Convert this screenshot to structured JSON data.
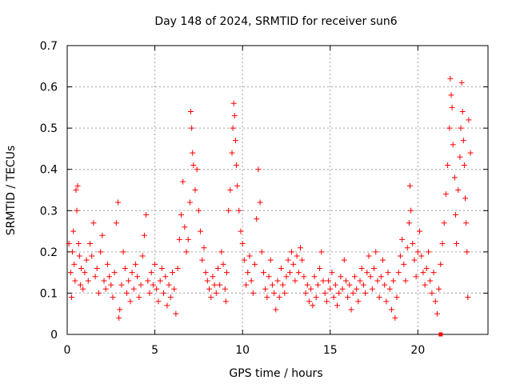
{
  "chart_data": {
    "type": "scatter",
    "title": "Day 148 of 2024, SRMTID for receiver sun6",
    "xlabel": "GPS time / hours",
    "ylabel": "SRMTID / TECUs",
    "xlim": [
      0,
      24
    ],
    "ylim": [
      0,
      0.7
    ],
    "xticks": [
      0,
      5,
      10,
      15,
      20
    ],
    "xtick_labels": [
      "0",
      "5",
      "10",
      "15",
      "20"
    ],
    "yticks": [
      0,
      0.1,
      0.2,
      0.3,
      0.4,
      0.5,
      0.6,
      0.7
    ],
    "ytick_labels": [
      "0",
      "0.1",
      "0.2",
      "0.3",
      "0.4",
      "0.5",
      "0.6",
      "0.7"
    ],
    "grid": true,
    "marker": "plus",
    "color": "#ff0000",
    "series": [
      {
        "name": "SRMTID",
        "points": [
          [
            0.1,
            0.22
          ],
          [
            0.2,
            0.15
          ],
          [
            0.25,
            0.09
          ],
          [
            0.3,
            0.2
          ],
          [
            0.35,
            0.25
          ],
          [
            0.4,
            0.17
          ],
          [
            0.45,
            0.13
          ],
          [
            0.5,
            0.35
          ],
          [
            0.55,
            0.3
          ],
          [
            0.6,
            0.36
          ],
          [
            0.65,
            0.22
          ],
          [
            0.7,
            0.19
          ],
          [
            0.75,
            0.12
          ],
          [
            0.8,
            0.16
          ],
          [
            0.9,
            0.11
          ],
          [
            1.0,
            0.15
          ],
          [
            1.1,
            0.18
          ],
          [
            1.2,
            0.13
          ],
          [
            1.3,
            0.22
          ],
          [
            1.4,
            0.19
          ],
          [
            1.5,
            0.27
          ],
          [
            1.6,
            0.14
          ],
          [
            1.7,
            0.16
          ],
          [
            1.8,
            0.1
          ],
          [
            1.9,
            0.2
          ],
          [
            2.0,
            0.24
          ],
          [
            2.1,
            0.13
          ],
          [
            2.2,
            0.11
          ],
          [
            2.3,
            0.17
          ],
          [
            2.4,
            0.14
          ],
          [
            2.5,
            0.12
          ],
          [
            2.6,
            0.09
          ],
          [
            2.7,
            0.15
          ],
          [
            2.8,
            0.27
          ],
          [
            2.9,
            0.32
          ],
          [
            2.95,
            0.04
          ],
          [
            3.0,
            0.06
          ],
          [
            3.1,
            0.12
          ],
          [
            3.2,
            0.2
          ],
          [
            3.3,
            0.16
          ],
          [
            3.4,
            0.1
          ],
          [
            3.5,
            0.13
          ],
          [
            3.6,
            0.08
          ],
          [
            3.7,
            0.15
          ],
          [
            3.8,
            0.11
          ],
          [
            3.9,
            0.17
          ],
          [
            4.0,
            0.14
          ],
          [
            4.1,
            0.09
          ],
          [
            4.2,
            0.12
          ],
          [
            4.3,
            0.19
          ],
          [
            4.4,
            0.24
          ],
          [
            4.5,
            0.29
          ],
          [
            4.6,
            0.13
          ],
          [
            4.7,
            0.1
          ],
          [
            4.8,
            0.15
          ],
          [
            4.9,
            0.12
          ],
          [
            5.0,
            0.17
          ],
          [
            5.1,
            0.11
          ],
          [
            5.2,
            0.08
          ],
          [
            5.3,
            0.13
          ],
          [
            5.4,
            0.16
          ],
          [
            5.5,
            0.1
          ],
          [
            5.6,
            0.14
          ],
          [
            5.7,
            0.07
          ],
          [
            5.8,
            0.12
          ],
          [
            5.9,
            0.09
          ],
          [
            6.0,
            0.15
          ],
          [
            6.1,
            0.11
          ],
          [
            6.2,
            0.05
          ],
          [
            6.3,
            0.16
          ],
          [
            6.4,
            0.23
          ],
          [
            6.5,
            0.29
          ],
          [
            6.6,
            0.37
          ],
          [
            6.7,
            0.26
          ],
          [
            6.8,
            0.2
          ],
          [
            6.9,
            0.23
          ],
          [
            7.0,
            0.32
          ],
          [
            7.05,
            0.54
          ],
          [
            7.1,
            0.5
          ],
          [
            7.15,
            0.44
          ],
          [
            7.2,
            0.41
          ],
          [
            7.3,
            0.35
          ],
          [
            7.4,
            0.4
          ],
          [
            7.5,
            0.3
          ],
          [
            7.6,
            0.25
          ],
          [
            7.7,
            0.18
          ],
          [
            7.8,
            0.21
          ],
          [
            7.9,
            0.15
          ],
          [
            8.0,
            0.13
          ],
          [
            8.1,
            0.11
          ],
          [
            8.2,
            0.09
          ],
          [
            8.3,
            0.14
          ],
          [
            8.4,
            0.12
          ],
          [
            8.5,
            0.1
          ],
          [
            8.6,
            0.16
          ],
          [
            8.7,
            0.12
          ],
          [
            8.8,
            0.2
          ],
          [
            8.9,
            0.17
          ],
          [
            9.0,
            0.11
          ],
          [
            9.05,
            0.08
          ],
          [
            9.1,
            0.15
          ],
          [
            9.2,
            0.3
          ],
          [
            9.3,
            0.35
          ],
          [
            9.4,
            0.44
          ],
          [
            9.45,
            0.5
          ],
          [
            9.5,
            0.56
          ],
          [
            9.55,
            0.53
          ],
          [
            9.6,
            0.47
          ],
          [
            9.65,
            0.41
          ],
          [
            9.7,
            0.36
          ],
          [
            9.8,
            0.3
          ],
          [
            9.9,
            0.25
          ],
          [
            10.0,
            0.22
          ],
          [
            10.1,
            0.18
          ],
          [
            10.2,
            0.12
          ],
          [
            10.3,
            0.15
          ],
          [
            10.4,
            0.19
          ],
          [
            10.5,
            0.13
          ],
          [
            10.6,
            0.1
          ],
          [
            10.7,
            0.17
          ],
          [
            10.8,
            0.28
          ],
          [
            10.9,
            0.4
          ],
          [
            11.0,
            0.32
          ],
          [
            11.1,
            0.2
          ],
          [
            11.2,
            0.15
          ],
          [
            11.3,
            0.11
          ],
          [
            11.4,
            0.09
          ],
          [
            11.5,
            0.14
          ],
          [
            11.6,
            0.18
          ],
          [
            11.7,
            0.12
          ],
          [
            11.8,
            0.1
          ],
          [
            11.9,
            0.06
          ],
          [
            12.0,
            0.13
          ],
          [
            12.1,
            0.09
          ],
          [
            12.2,
            0.16
          ],
          [
            12.3,
            0.12
          ],
          [
            12.4,
            0.1
          ],
          [
            12.5,
            0.14
          ],
          [
            12.6,
            0.18
          ],
          [
            12.7,
            0.15
          ],
          [
            12.8,
            0.2
          ],
          [
            12.9,
            0.17
          ],
          [
            13.0,
            0.13
          ],
          [
            13.1,
            0.19
          ],
          [
            13.2,
            0.15
          ],
          [
            13.3,
            0.21
          ],
          [
            13.4,
            0.18
          ],
          [
            13.5,
            0.14
          ],
          [
            13.6,
            0.1
          ],
          [
            13.7,
            0.12
          ],
          [
            13.8,
            0.08
          ],
          [
            13.9,
            0.11
          ],
          [
            14.0,
            0.07
          ],
          [
            14.1,
            0.14
          ],
          [
            14.2,
            0.09
          ],
          [
            14.3,
            0.12
          ],
          [
            14.4,
            0.16
          ],
          [
            14.5,
            0.2
          ],
          [
            14.6,
            0.13
          ],
          [
            14.7,
            0.1
          ],
          [
            14.8,
            0.08
          ],
          [
            14.9,
            0.13
          ],
          [
            15.0,
            0.11
          ],
          [
            15.1,
            0.15
          ],
          [
            15.2,
            0.09
          ],
          [
            15.3,
            0.12
          ],
          [
            15.4,
            0.07
          ],
          [
            15.5,
            0.1
          ],
          [
            15.6,
            0.14
          ],
          [
            15.7,
            0.11
          ],
          [
            15.8,
            0.18
          ],
          [
            15.9,
            0.13
          ],
          [
            16.0,
            0.09
          ],
          [
            16.1,
            0.12
          ],
          [
            16.2,
            0.06
          ],
          [
            16.3,
            0.1
          ],
          [
            16.4,
            0.14
          ],
          [
            16.5,
            0.11
          ],
          [
            16.6,
            0.08
          ],
          [
            16.7,
            0.13
          ],
          [
            16.8,
            0.16
          ],
          [
            16.9,
            0.12
          ],
          [
            17.0,
            0.1
          ],
          [
            17.1,
            0.15
          ],
          [
            17.2,
            0.19
          ],
          [
            17.3,
            0.14
          ],
          [
            17.4,
            0.11
          ],
          [
            17.5,
            0.16
          ],
          [
            17.6,
            0.2
          ],
          [
            17.7,
            0.13
          ],
          [
            17.8,
            0.09
          ],
          [
            17.9,
            0.14
          ],
          [
            18.0,
            0.18
          ],
          [
            18.1,
            0.12
          ],
          [
            18.2,
            0.08
          ],
          [
            18.3,
            0.15
          ],
          [
            18.4,
            0.11
          ],
          [
            18.5,
            0.06
          ],
          [
            18.6,
            0.13
          ],
          [
            18.7,
            0.04
          ],
          [
            18.8,
            0.09
          ],
          [
            18.9,
            0.15
          ],
          [
            19.0,
            0.19
          ],
          [
            19.1,
            0.23
          ],
          [
            19.2,
            0.17
          ],
          [
            19.3,
            0.13
          ],
          [
            19.4,
            0.21
          ],
          [
            19.5,
            0.27
          ],
          [
            19.55,
            0.36
          ],
          [
            19.6,
            0.3
          ],
          [
            19.7,
            0.22
          ],
          [
            19.8,
            0.18
          ],
          [
            19.9,
            0.14
          ],
          [
            20.0,
            0.2
          ],
          [
            20.1,
            0.25
          ],
          [
            20.2,
            0.19
          ],
          [
            20.3,
            0.15
          ],
          [
            20.4,
            0.12
          ],
          [
            20.5,
            0.16
          ],
          [
            20.6,
            0.2
          ],
          [
            20.7,
            0.13
          ],
          [
            20.8,
            0.1
          ],
          [
            20.9,
            0.15
          ],
          [
            21.0,
            0.08
          ],
          [
            21.1,
            0.05
          ],
          [
            21.2,
            0.11
          ],
          [
            21.3,
            0.17
          ],
          [
            21.4,
            0.22
          ],
          [
            21.5,
            0.27
          ],
          [
            21.6,
            0.34
          ],
          [
            21.7,
            0.41
          ],
          [
            21.8,
            0.5
          ],
          [
            21.85,
            0.62
          ],
          [
            21.9,
            0.58
          ],
          [
            21.95,
            0.55
          ],
          [
            22.0,
            0.46
          ],
          [
            22.1,
            0.38
          ],
          [
            22.15,
            0.29
          ],
          [
            22.2,
            0.22
          ],
          [
            22.3,
            0.35
          ],
          [
            22.4,
            0.43
          ],
          [
            22.45,
            0.5
          ],
          [
            22.5,
            0.61
          ],
          [
            22.55,
            0.54
          ],
          [
            22.6,
            0.47
          ],
          [
            22.65,
            0.41
          ],
          [
            22.7,
            0.33
          ],
          [
            22.75,
            0.27
          ],
          [
            22.8,
            0.2
          ],
          [
            22.85,
            0.09
          ],
          [
            22.9,
            0.52
          ],
          [
            23.0,
            0.44
          ]
        ]
      }
    ],
    "extra_marks": [
      {
        "x": 21.3,
        "y": 0.0,
        "shape": "square"
      }
    ]
  }
}
